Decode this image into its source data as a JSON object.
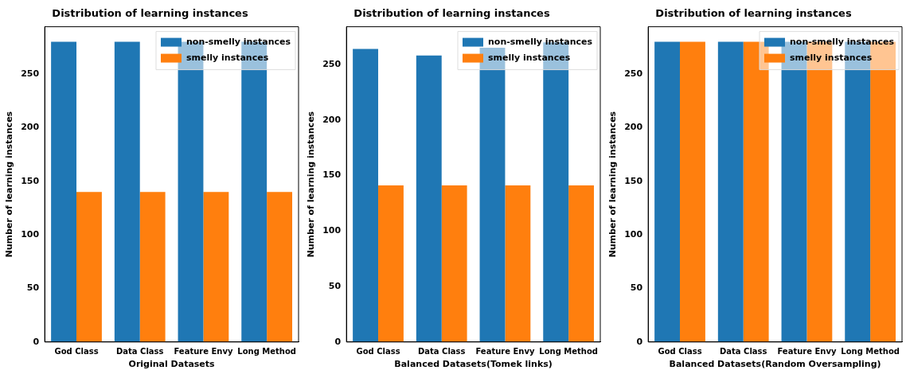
{
  "chart_data": [
    {
      "type": "bar",
      "title": "Distribution of learning instances",
      "xlabel": "Original Datasets",
      "ylabel": "Number of learning instances",
      "categories": [
        "God Class",
        "Data Class",
        "Feature Envy",
        "Long Method"
      ],
      "series": [
        {
          "name": "non-smelly instances",
          "color": "#1f77b4",
          "values": [
            280,
            280,
            280,
            280
          ]
        },
        {
          "name": "smelly instances",
          "color": "#ff7f0e",
          "values": [
            140,
            140,
            140,
            140
          ]
        }
      ],
      "ylim": [
        0,
        294
      ],
      "yticks": [
        0,
        50,
        100,
        150,
        200,
        250
      ],
      "legend": "top right",
      "grid": false
    },
    {
      "type": "bar",
      "title": "Distribution of learning instances",
      "xlabel": "Balanced Datasets(Tomek links)",
      "ylabel": "Number of learning instances",
      "categories": [
        "God Class",
        "Data Class",
        "Feature Envy",
        "Long Method"
      ],
      "series": [
        {
          "name": "non-smelly instances",
          "color": "#1f77b4",
          "values": [
            264,
            258,
            265,
            270
          ]
        },
        {
          "name": "smelly instances",
          "color": "#ff7f0e",
          "values": [
            141,
            141,
            141,
            141
          ]
        }
      ],
      "ylim": [
        0,
        284
      ],
      "yticks": [
        0,
        50,
        100,
        150,
        200,
        250
      ],
      "legend": "top right",
      "grid": false
    },
    {
      "type": "bar",
      "title": "Distribution of learning instances",
      "xlabel": "Balanced Datasets(Random Oversampling)",
      "ylabel": "Number of learning instances",
      "categories": [
        "God Class",
        "Data Class",
        "Feature Envy",
        "Long Method"
      ],
      "series": [
        {
          "name": "non-smelly instances",
          "color": "#1f77b4",
          "values": [
            280,
            280,
            280,
            280
          ]
        },
        {
          "name": "smelly instances",
          "color": "#ff7f0e",
          "values": [
            280,
            280,
            280,
            280
          ]
        }
      ],
      "ylim": [
        0,
        294
      ],
      "yticks": [
        0,
        50,
        100,
        150,
        200,
        250
      ],
      "legend": "top right",
      "grid": false
    }
  ]
}
